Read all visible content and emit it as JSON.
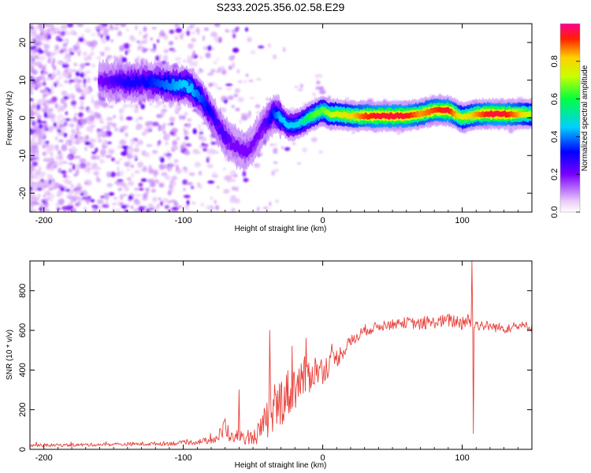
{
  "title": "S233.2025.356.02.58.E29",
  "chart_data": [
    {
      "type": "heatmap",
      "name": "spectrogram",
      "xlabel": "Height of straight line (km)",
      "ylabel": "Frequency (Hz)",
      "xlim": [
        -210,
        150
      ],
      "ylim": [
        -25,
        25
      ],
      "xticks": [
        -200,
        -100,
        0,
        100
      ],
      "yticks": [
        -20,
        -10,
        0,
        10,
        20
      ],
      "colorbar": {
        "label": "Normalized spectral amplitude",
        "range": [
          0,
          1
        ],
        "ticks": [
          "0.0",
          "0.2",
          "0.4",
          "0.6",
          "0.8"
        ]
      },
      "ridge": {
        "x": [
          -160,
          -150,
          -140,
          -130,
          -120,
          -110,
          -100,
          -95,
          -90,
          -85,
          -80,
          -75,
          -70,
          -65,
          -60,
          -55,
          -50,
          -45,
          -40,
          -35,
          -30,
          -25,
          -20,
          -15,
          -10,
          -5,
          0,
          5,
          10,
          20,
          30,
          40,
          50,
          60,
          70,
          80,
          90,
          95,
          100,
          110,
          120,
          130,
          140,
          150
        ],
        "y": [
          10,
          9.5,
          9.5,
          9.5,
          9.5,
          9,
          8.5,
          8,
          6.5,
          4,
          1,
          -2,
          -5,
          -7,
          -8,
          -9,
          -7,
          -4,
          -1,
          1,
          0,
          -2,
          -2,
          -1,
          0,
          1,
          2,
          1,
          1,
          0.5,
          0.5,
          0.5,
          0.5,
          0.5,
          1,
          2,
          2,
          1,
          0,
          1,
          1,
          1,
          1,
          1
        ],
        "amplitude": [
          0.2,
          0.25,
          0.3,
          0.3,
          0.35,
          0.4,
          0.45,
          0.45,
          0.4,
          0.35,
          0.3,
          0.25,
          0.25,
          0.2,
          0.2,
          0.2,
          0.2,
          0.2,
          0.25,
          0.35,
          0.45,
          0.45,
          0.45,
          0.5,
          0.6,
          0.65,
          0.65,
          0.7,
          0.75,
          0.8,
          0.9,
          0.95,
          0.95,
          0.95,
          0.85,
          0.9,
          0.95,
          0.85,
          0.75,
          0.85,
          0.95,
          0.95,
          0.85,
          0.7
        ]
      }
    },
    {
      "type": "line",
      "name": "snr",
      "xlabel": "Height of straight line (km)",
      "ylabel": "SNR (10 * v/v)",
      "xlim": [
        -210,
        150
      ],
      "ylim": [
        0,
        950
      ],
      "xticks": [
        -200,
        -100,
        0,
        100
      ],
      "yticks": [
        0,
        200,
        400,
        600,
        800
      ],
      "color": "#e8413b",
      "envelope": {
        "x": [
          -210,
          -180,
          -150,
          -120,
          -100,
          -90,
          -80,
          -75,
          -70,
          -65,
          -60,
          -55,
          -50,
          -45,
          -40,
          -35,
          -30,
          -25,
          -20,
          -15,
          -10,
          -5,
          0,
          5,
          10,
          15,
          20,
          25,
          30,
          40,
          50,
          60,
          70,
          80,
          90,
          100,
          105,
          110,
          120,
          130,
          140,
          150
        ],
        "y": [
          20,
          22,
          25,
          28,
          32,
          38,
          45,
          60,
          110,
          60,
          70,
          50,
          60,
          90,
          150,
          180,
          250,
          280,
          320,
          350,
          380,
          400,
          400,
          430,
          460,
          500,
          540,
          570,
          600,
          620,
          630,
          640,
          630,
          640,
          650,
          640,
          650,
          630,
          620,
          610,
          620,
          620
        ],
        "noise": [
          8,
          8,
          9,
          10,
          12,
          14,
          18,
          25,
          70,
          25,
          35,
          25,
          40,
          60,
          100,
          120,
          130,
          130,
          120,
          110,
          100,
          80,
          70,
          60,
          50,
          40,
          35,
          30,
          30,
          25,
          25,
          28,
          30,
          30,
          35,
          40,
          40,
          30,
          25,
          25,
          25,
          25
        ]
      },
      "peaks": [
        {
          "x": -60,
          "y": 300
        },
        {
          "x": -38,
          "y": 600
        },
        {
          "x": -22,
          "y": 520
        },
        {
          "x": -12,
          "y": 560
        },
        {
          "x": 107,
          "y": 950
        },
        {
          "x": 108,
          "y": 80
        }
      ]
    }
  ]
}
